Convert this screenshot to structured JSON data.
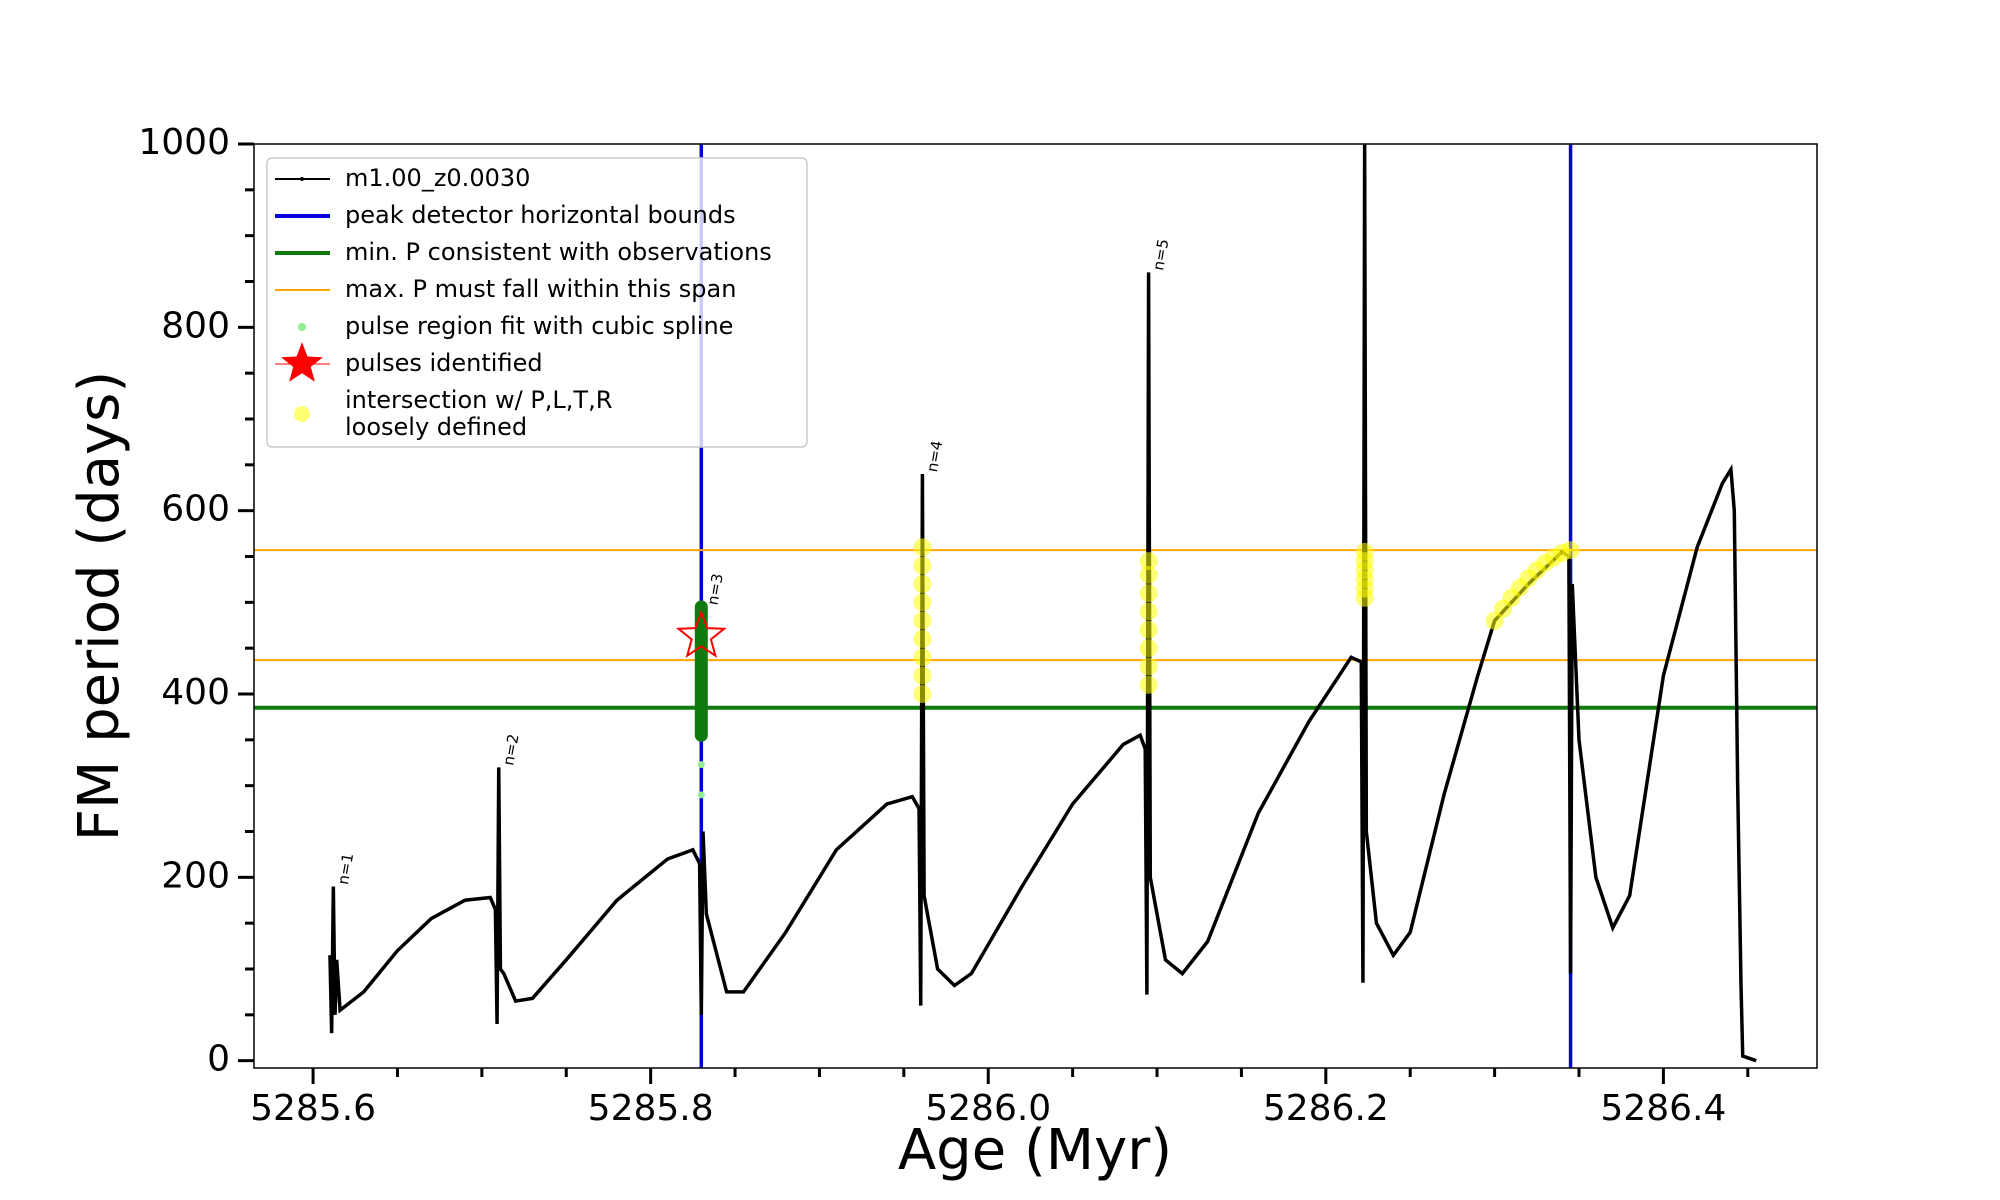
{
  "chart_data": {
    "type": "line",
    "xlabel": "Age (Myr)",
    "ylabel": "FM period (days)",
    "xlim": [
      5285.565,
      5286.491
    ],
    "ylim": [
      -8,
      1000
    ],
    "xticks": [
      5285.6,
      5285.8,
      {
        "value": 5286,
        "label": "5286.0"
      },
      5286.2,
      5286.4
    ],
    "yticks": [
      0,
      200,
      400,
      600,
      800,
      1000
    ],
    "xticks_minor": [
      5285.55,
      5285.65,
      5285.7,
      5285.75,
      5285.85,
      5285.9,
      5285.95,
      5286.05,
      5286.1,
      5286.15,
      5286.25,
      5286.3,
      5286.35,
      5286.45
    ],
    "yticks_minor": [
      50,
      100,
      150,
      250,
      300,
      350,
      450,
      500,
      550,
      650,
      700,
      750,
      850,
      900,
      950
    ],
    "series": [
      {
        "name": "m1.00_z0.0030",
        "kind": "line",
        "color": "#000000",
        "x": [
          5285.61,
          5285.611,
          5285.612,
          5285.613,
          5285.614,
          5285.616,
          5285.63,
          5285.65,
          5285.67,
          5285.69,
          5285.705,
          5285.708,
          5285.709,
          5285.71,
          5285.711,
          5285.713,
          5285.72,
          5285.73,
          5285.75,
          5285.78,
          5285.81,
          5285.825,
          5285.829,
          5285.83,
          5285.831,
          5285.833,
          5285.845,
          5285.855,
          5285.88,
          5285.91,
          5285.94,
          5285.955,
          5285.959,
          5285.96,
          5285.961,
          5285.962,
          5285.97,
          5285.98,
          5285.99,
          5286.02,
          5286.05,
          5286.08,
          5286.09,
          5286.093,
          5286.094,
          5286.095,
          5286.096,
          5286.105,
          5286.115,
          5286.13,
          5286.16,
          5286.19,
          5286.215,
          5286.221,
          5286.222,
          5286.223,
          5286.224,
          5286.23,
          5286.24,
          5286.25,
          5286.27,
          5286.29,
          5286.3,
          5286.32,
          5286.34,
          5286.344,
          5286.345,
          5286.346,
          5286.35,
          5286.36,
          5286.37,
          5286.38,
          5286.4,
          5286.42,
          5286.435,
          5286.44,
          5286.442,
          5286.444,
          5286.446,
          5286.447,
          5286.455
        ],
        "values": [
          115,
          30,
          190,
          50,
          110,
          55,
          75,
          120,
          155,
          175,
          178,
          165,
          40,
          320,
          100,
          95,
          65,
          68,
          110,
          175,
          220,
          230,
          215,
          50,
          250,
          160,
          75,
          75,
          140,
          230,
          280,
          288,
          275,
          60,
          640,
          180,
          100,
          82,
          95,
          190,
          280,
          345,
          355,
          340,
          72,
          860,
          200,
          110,
          95,
          130,
          270,
          370,
          440,
          435,
          85,
          1000,
          250,
          150,
          115,
          140,
          290,
          420,
          480,
          520,
          555,
          550,
          95,
          520,
          350,
          200,
          145,
          180,
          420,
          560,
          630,
          645,
          600,
          300,
          80,
          5,
          0
        ]
      },
      {
        "name": "peak detector horizontal bounds",
        "kind": "vline",
        "color": "#0000dd",
        "x": [
          5285.83,
          5286.345
        ]
      },
      {
        "name": "min. P consistent with observations",
        "kind": "hline",
        "color": "#107a10",
        "values": [
          385
        ]
      },
      {
        "name": "max. P must fall within this span",
        "kind": "hline",
        "color": "#ffa500",
        "values": [
          437,
          557
        ]
      },
      {
        "name": "pulse region fit with cubic spline",
        "kind": "scatter",
        "color": "#90ee90",
        "x": [
          5285.83,
          5285.83
        ],
        "values": [
          290,
          323
        ]
      },
      {
        "name": "pulses identified",
        "kind": "star",
        "color": "#ff0000",
        "x": [
          5285.83
        ],
        "values": [
          463
        ]
      },
      {
        "name": "intersection w/ P,L,T,R\nloosely defined",
        "kind": "scatter",
        "color": "#ffff00",
        "x": [
          5285.961,
          5285.961,
          5285.961,
          5285.961,
          5285.961,
          5285.961,
          5285.961,
          5285.961,
          5285.961,
          5286.095,
          5286.095,
          5286.095,
          5286.095,
          5286.095,
          5286.095,
          5286.095,
          5286.095,
          5286.223,
          5286.223,
          5286.223,
          5286.223,
          5286.223,
          5286.223,
          5286.3,
          5286.305,
          5286.31,
          5286.315,
          5286.32,
          5286.325,
          5286.33,
          5286.335,
          5286.34,
          5286.345
        ],
        "values": [
          400,
          420,
          440,
          460,
          480,
          500,
          520,
          540,
          560,
          410,
          430,
          450,
          470,
          490,
          510,
          530,
          545,
          505,
          515,
          525,
          535,
          545,
          555,
          480,
          493,
          505,
          516,
          526,
          535,
          543,
          549,
          554,
          557
        ]
      },
      {
        "kind": "segment",
        "color": "#107a10",
        "x": 5285.83,
        "ylow": 355,
        "yhigh": 495
      }
    ],
    "annotations": [
      {
        "text": "n=1",
        "x": 5285.612,
        "y": 190
      },
      {
        "text": "n=2",
        "x": 5285.71,
        "y": 320
      },
      {
        "text": "n=3",
        "x": 5285.831,
        "y": 495
      },
      {
        "text": "n=4",
        "x": 5285.961,
        "y": 640
      },
      {
        "text": "n=5",
        "x": 5286.095,
        "y": 860
      }
    ]
  }
}
